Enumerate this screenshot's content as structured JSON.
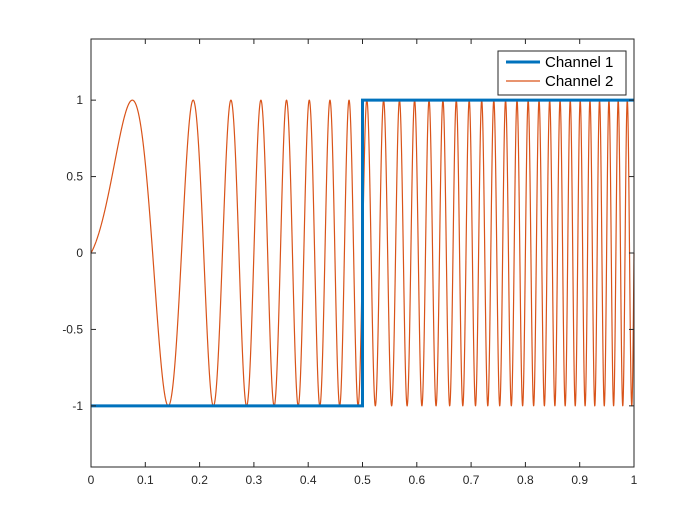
{
  "chart_data": {
    "type": "line",
    "title": "",
    "xlabel": "",
    "ylabel": "",
    "xlim": [
      0,
      1
    ],
    "ylim": [
      -1.4,
      1.4
    ],
    "x_ticks": [
      0,
      0.1,
      0.2,
      0.3,
      0.4,
      0.5,
      0.6,
      0.7,
      0.8,
      0.9,
      1
    ],
    "x_tick_labels": [
      "0",
      "0.1",
      "0.2",
      "0.3",
      "0.4",
      "0.5",
      "0.6",
      "0.7",
      "0.8",
      "0.9",
      "1"
    ],
    "y_ticks": [
      -1,
      -0.5,
      0,
      0.5,
      1
    ],
    "y_tick_labels": [
      "-1",
      "-0.5",
      "0",
      "0.5",
      "1"
    ],
    "grid": false,
    "legend_position": "top-right",
    "series": [
      {
        "name": "Channel 1",
        "color": "#0072bd",
        "line_width": "thick",
        "shape": "step",
        "x": [
          0,
          0.5,
          0.5,
          1
        ],
        "y": [
          -1,
          -1,
          1,
          1
        ]
      },
      {
        "name": "Channel 2",
        "color": "#d95319",
        "line_width": "thin",
        "shape": "chirp",
        "function": "sin(2*pi*(f0*x + 0.5*k*x^2))",
        "f0": 1,
        "k": 60,
        "x_range": [
          0,
          1
        ],
        "y_range": [
          -1,
          1
        ]
      }
    ]
  }
}
